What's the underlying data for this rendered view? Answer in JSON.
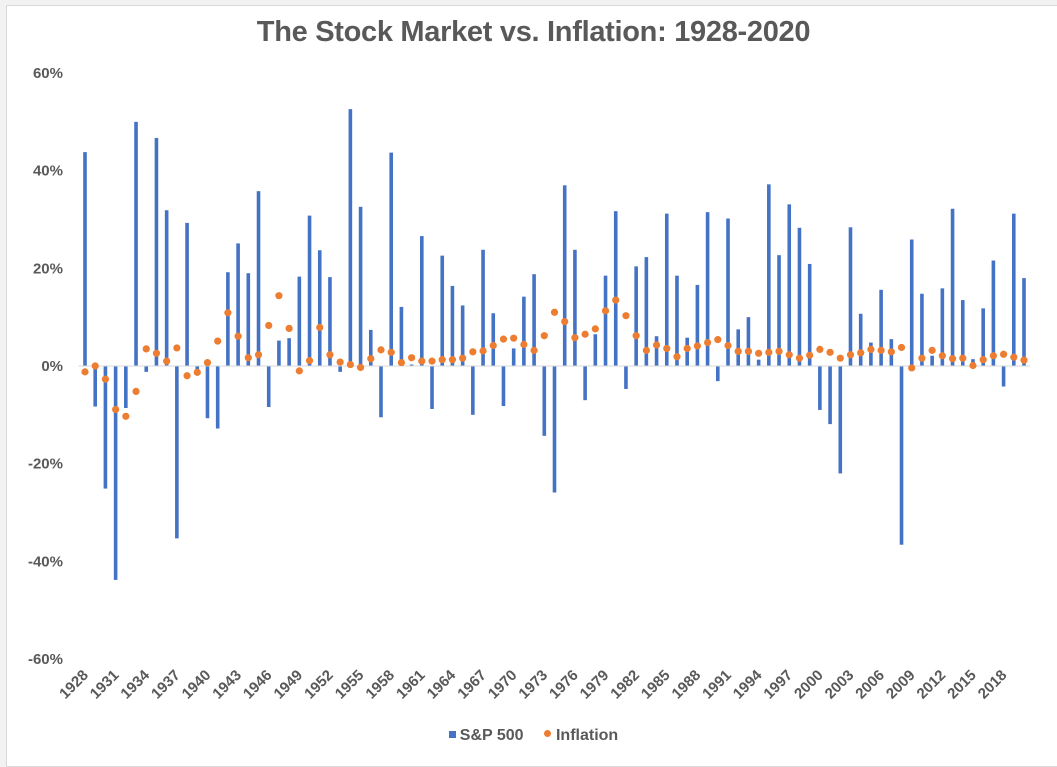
{
  "chart_data": {
    "type": "bar",
    "title": "The Stock Market vs. Inflation: 1928-2020",
    "xlabel": "",
    "ylabel": "",
    "ylim": [
      -60,
      60
    ],
    "yticks": [
      "60%",
      "40%",
      "20%",
      "0%",
      "-20%",
      "-40%",
      "-60%"
    ],
    "ytick_values": [
      60,
      40,
      20,
      0,
      -20,
      -40,
      -60
    ],
    "xtick_labels": [
      "1928",
      "1931",
      "1934",
      "1937",
      "1940",
      "1943",
      "1946",
      "1949",
      "1952",
      "1955",
      "1958",
      "1961",
      "1964",
      "1967",
      "1970",
      "1973",
      "1976",
      "1979",
      "1982",
      "1985",
      "1988",
      "1991",
      "1994",
      "1997",
      "2000",
      "2003",
      "2006",
      "2009",
      "2012",
      "2015",
      "2018"
    ],
    "grid": false,
    "legend_position": "bottom",
    "x": [
      1928,
      1929,
      1930,
      1931,
      1932,
      1933,
      1934,
      1935,
      1936,
      1937,
      1938,
      1939,
      1940,
      1941,
      1942,
      1943,
      1944,
      1945,
      1946,
      1947,
      1948,
      1949,
      1950,
      1951,
      1952,
      1953,
      1954,
      1955,
      1956,
      1957,
      1958,
      1959,
      1960,
      1961,
      1962,
      1963,
      1964,
      1965,
      1966,
      1967,
      1968,
      1969,
      1970,
      1971,
      1972,
      1973,
      1974,
      1975,
      1976,
      1977,
      1978,
      1979,
      1980,
      1981,
      1982,
      1983,
      1984,
      1985,
      1986,
      1987,
      1988,
      1989,
      1990,
      1991,
      1992,
      1993,
      1994,
      1995,
      1996,
      1997,
      1998,
      1999,
      2000,
      2001,
      2002,
      2003,
      2004,
      2005,
      2006,
      2007,
      2008,
      2009,
      2010,
      2011,
      2012,
      2013,
      2014,
      2015,
      2016,
      2017,
      2018,
      2019,
      2020
    ],
    "series": [
      {
        "name": "S&P 500",
        "kind": "bar",
        "color": "#4472c4",
        "values": [
          43.8,
          -8.3,
          -25.1,
          -43.8,
          -8.6,
          50.0,
          -1.2,
          46.7,
          31.9,
          -35.3,
          29.3,
          -1.1,
          -10.7,
          -12.8,
          19.2,
          25.1,
          19.0,
          35.8,
          -8.4,
          5.2,
          5.7,
          18.3,
          30.8,
          23.7,
          18.2,
          -1.2,
          52.6,
          32.6,
          7.4,
          -10.5,
          43.7,
          12.1,
          0.3,
          26.6,
          -8.8,
          22.6,
          16.4,
          12.4,
          -10.0,
          23.8,
          10.8,
          -8.2,
          3.6,
          14.2,
          18.8,
          -14.3,
          -25.9,
          37.0,
          23.8,
          -7.0,
          6.5,
          18.5,
          31.7,
          -4.7,
          20.4,
          22.3,
          6.1,
          31.2,
          18.5,
          5.8,
          16.6,
          31.5,
          -3.1,
          30.2,
          7.5,
          10.0,
          1.3,
          37.2,
          22.7,
          33.1,
          28.3,
          20.9,
          -9.0,
          -11.9,
          -22.0,
          28.4,
          10.7,
          4.8,
          15.6,
          5.5,
          -36.6,
          25.9,
          14.8,
          2.1,
          15.9,
          32.2,
          13.5,
          1.4,
          11.8,
          21.6,
          -4.2,
          31.2,
          18.0
        ]
      },
      {
        "name": "Inflation",
        "kind": "scatter",
        "color": "#ed7d31",
        "values": [
          -1.2,
          0.0,
          -2.7,
          -8.9,
          -10.3,
          -5.2,
          3.5,
          2.6,
          1.0,
          3.7,
          -2.0,
          -1.3,
          0.7,
          5.1,
          10.9,
          6.1,
          1.7,
          2.3,
          8.3,
          14.4,
          7.7,
          -1.0,
          1.1,
          7.9,
          2.3,
          0.8,
          0.3,
          -0.3,
          1.5,
          3.3,
          2.8,
          0.7,
          1.7,
          1.0,
          1.0,
          1.3,
          1.3,
          1.6,
          2.9,
          3.1,
          4.2,
          5.5,
          5.7,
          4.4,
          3.2,
          6.2,
          11.0,
          9.1,
          5.8,
          6.5,
          7.6,
          11.3,
          13.5,
          10.3,
          6.2,
          3.2,
          4.3,
          3.6,
          1.9,
          3.6,
          4.1,
          4.8,
          5.4,
          4.2,
          3.0,
          3.0,
          2.6,
          2.8,
          3.0,
          2.3,
          1.6,
          2.2,
          3.4,
          2.8,
          1.6,
          2.3,
          2.7,
          3.4,
          3.2,
          2.9,
          3.8,
          -0.4,
          1.6,
          3.2,
          2.1,
          1.5,
          1.6,
          0.1,
          1.3,
          2.1,
          2.4,
          1.8,
          1.2
        ]
      }
    ]
  }
}
